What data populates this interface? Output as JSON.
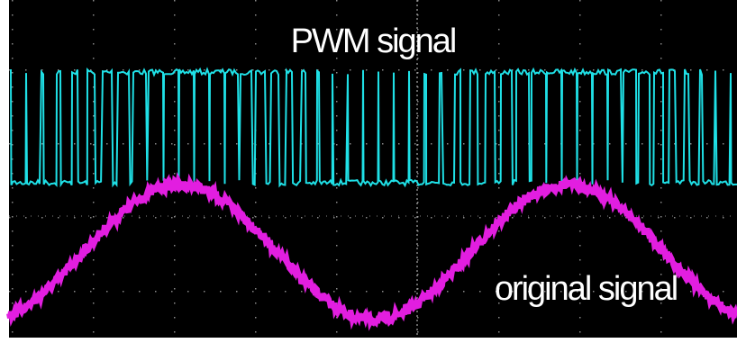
{
  "labels": {
    "pwm": "PWM signal",
    "original": "original signal"
  }
}
